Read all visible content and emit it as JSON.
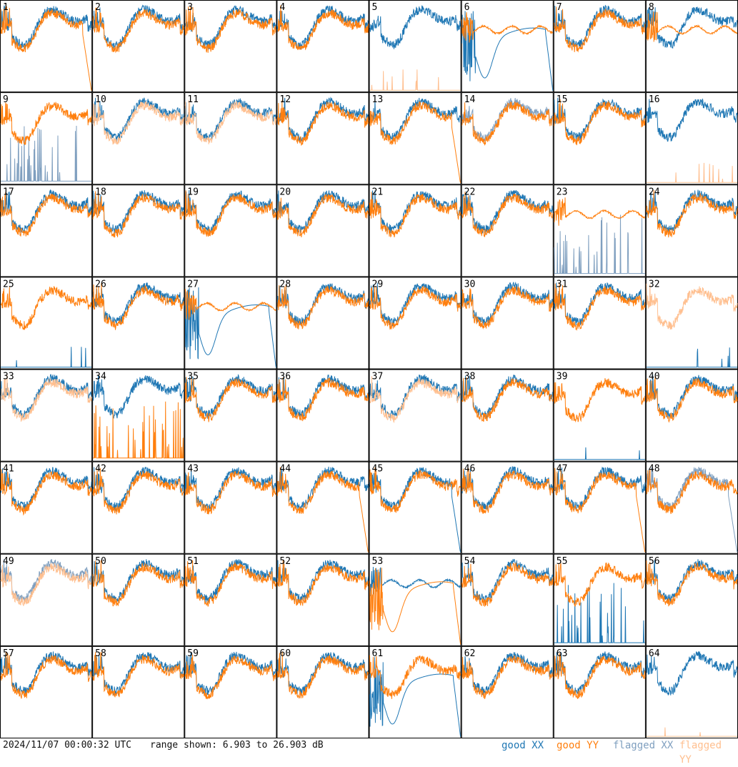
{
  "footer": {
    "timestamp": "2024/11/07 00:00:32 UTC",
    "range": "range shown: 6.903 to 26.903 dB",
    "legend": {
      "good_xx": "good XX",
      "good_yy": "good YY",
      "flagged_xx": "flagged XX",
      "flagged_yy": "flagged YY"
    }
  },
  "colors": {
    "good_xx": "#1f77b4",
    "good_yy": "#ff7f0e",
    "flagged_xx": "#7f9fbf",
    "flagged_yy": "#ffbf8f"
  },
  "chart_data": {
    "type": "line",
    "grid_rows": 8,
    "grid_cols": 8,
    "ylim": [
      6.903,
      26.903
    ],
    "yunit": "dB",
    "panels": [
      {
        "id": "1",
        "xx": {
          "status": "good",
          "shape": "normal"
        },
        "yy": {
          "status": "good",
          "shape": "drop_end"
        }
      },
      {
        "id": "2",
        "xx": {
          "status": "good",
          "shape": "normal"
        },
        "yy": {
          "status": "good",
          "shape": "normal"
        }
      },
      {
        "id": "3",
        "xx": {
          "status": "good",
          "shape": "normal"
        },
        "yy": {
          "status": "good",
          "shape": "normal"
        }
      },
      {
        "id": "4",
        "xx": {
          "status": "good",
          "shape": "normal"
        },
        "yy": {
          "status": "good",
          "shape": "normal"
        }
      },
      {
        "id": "5",
        "xx": {
          "status": "good",
          "shape": "normal"
        },
        "yy": {
          "status": "flagged",
          "shape": "flat_low"
        }
      },
      {
        "id": "6",
        "xx": {
          "status": "good",
          "shape": "dip"
        },
        "yy": {
          "status": "good",
          "shape": "flat"
        }
      },
      {
        "id": "7",
        "xx": {
          "status": "good",
          "shape": "normal"
        },
        "yy": {
          "status": "good",
          "shape": "normal"
        }
      },
      {
        "id": "8",
        "xx": {
          "status": "good",
          "shape": "normal"
        },
        "yy": {
          "status": "good",
          "shape": "flat"
        }
      },
      {
        "id": "9",
        "xx": {
          "status": "flagged",
          "shape": "spikes_low"
        },
        "yy": {
          "status": "good",
          "shape": "normal"
        }
      },
      {
        "id": "10",
        "xx": {
          "status": "good",
          "shape": "normal"
        },
        "yy": {
          "status": "flagged",
          "shape": "normal"
        }
      },
      {
        "id": "11",
        "xx": {
          "status": "good",
          "shape": "normal"
        },
        "yy": {
          "status": "flagged",
          "shape": "normal"
        }
      },
      {
        "id": "12",
        "xx": {
          "status": "good",
          "shape": "normal"
        },
        "yy": {
          "status": "good",
          "shape": "normal"
        }
      },
      {
        "id": "13",
        "xx": {
          "status": "good",
          "shape": "normal"
        },
        "yy": {
          "status": "good",
          "shape": "drop_end"
        }
      },
      {
        "id": "14",
        "xx": {
          "status": "flagged",
          "shape": "normal"
        },
        "yy": {
          "status": "good",
          "shape": "normal"
        }
      },
      {
        "id": "15",
        "xx": {
          "status": "good",
          "shape": "normal"
        },
        "yy": {
          "status": "good",
          "shape": "normal"
        }
      },
      {
        "id": "16",
        "xx": {
          "status": "good",
          "shape": "normal"
        },
        "yy": {
          "status": "flagged",
          "shape": "flat_low"
        }
      },
      {
        "id": "17",
        "xx": {
          "status": "good",
          "shape": "normal"
        },
        "yy": {
          "status": "good",
          "shape": "normal"
        }
      },
      {
        "id": "18",
        "xx": {
          "status": "good",
          "shape": "normal"
        },
        "yy": {
          "status": "good",
          "shape": "normal"
        }
      },
      {
        "id": "19",
        "xx": {
          "status": "good",
          "shape": "normal"
        },
        "yy": {
          "status": "good",
          "shape": "normal"
        }
      },
      {
        "id": "20",
        "xx": {
          "status": "good",
          "shape": "normal"
        },
        "yy": {
          "status": "good",
          "shape": "normal"
        }
      },
      {
        "id": "21",
        "xx": {
          "status": "good",
          "shape": "normal"
        },
        "yy": {
          "status": "good",
          "shape": "normal"
        }
      },
      {
        "id": "22",
        "xx": {
          "status": "good",
          "shape": "normal"
        },
        "yy": {
          "status": "good",
          "shape": "normal"
        }
      },
      {
        "id": "23",
        "xx": {
          "status": "flagged",
          "shape": "spikes_low"
        },
        "yy": {
          "status": "good",
          "shape": "flat"
        }
      },
      {
        "id": "24",
        "xx": {
          "status": "good",
          "shape": "normal"
        },
        "yy": {
          "status": "good",
          "shape": "normal"
        }
      },
      {
        "id": "25",
        "xx": {
          "status": "good",
          "shape": "flat_low"
        },
        "yy": {
          "status": "good",
          "shape": "normal"
        }
      },
      {
        "id": "26",
        "xx": {
          "status": "good",
          "shape": "normal"
        },
        "yy": {
          "status": "good",
          "shape": "normal"
        }
      },
      {
        "id": "27",
        "xx": {
          "status": "good",
          "shape": "dip"
        },
        "yy": {
          "status": "good",
          "shape": "flat"
        }
      },
      {
        "id": "28",
        "xx": {
          "status": "good",
          "shape": "normal"
        },
        "yy": {
          "status": "good",
          "shape": "normal"
        }
      },
      {
        "id": "29",
        "xx": {
          "status": "good",
          "shape": "normal"
        },
        "yy": {
          "status": "good",
          "shape": "normal"
        }
      },
      {
        "id": "30",
        "xx": {
          "status": "good",
          "shape": "normal"
        },
        "yy": {
          "status": "good",
          "shape": "normal"
        }
      },
      {
        "id": "31",
        "xx": {
          "status": "good",
          "shape": "normal"
        },
        "yy": {
          "status": "good",
          "shape": "normal"
        }
      },
      {
        "id": "32",
        "xx": {
          "status": "good",
          "shape": "flat_low"
        },
        "yy": {
          "status": "flagged",
          "shape": "normal"
        }
      },
      {
        "id": "33",
        "xx": {
          "status": "good",
          "shape": "normal"
        },
        "yy": {
          "status": "flagged",
          "shape": "normal"
        }
      },
      {
        "id": "34",
        "xx": {
          "status": "good",
          "shape": "normal"
        },
        "yy": {
          "status": "good",
          "shape": "spikes_low"
        }
      },
      {
        "id": "35",
        "xx": {
          "status": "good",
          "shape": "normal"
        },
        "yy": {
          "status": "good",
          "shape": "normal"
        }
      },
      {
        "id": "36",
        "xx": {
          "status": "good",
          "shape": "normal"
        },
        "yy": {
          "status": "good",
          "shape": "normal"
        }
      },
      {
        "id": "37",
        "xx": {
          "status": "good",
          "shape": "normal"
        },
        "yy": {
          "status": "flagged",
          "shape": "normal"
        }
      },
      {
        "id": "38",
        "xx": {
          "status": "good",
          "shape": "normal"
        },
        "yy": {
          "status": "good",
          "shape": "normal"
        }
      },
      {
        "id": "39",
        "xx": {
          "status": "good",
          "shape": "flat_low"
        },
        "yy": {
          "status": "good",
          "shape": "normal"
        }
      },
      {
        "id": "40",
        "xx": {
          "status": "good",
          "shape": "normal"
        },
        "yy": {
          "status": "good",
          "shape": "normal"
        }
      },
      {
        "id": "41",
        "xx": {
          "status": "good",
          "shape": "normal"
        },
        "yy": {
          "status": "good",
          "shape": "normal"
        }
      },
      {
        "id": "42",
        "xx": {
          "status": "good",
          "shape": "normal"
        },
        "yy": {
          "status": "good",
          "shape": "normal"
        }
      },
      {
        "id": "43",
        "xx": {
          "status": "good",
          "shape": "normal"
        },
        "yy": {
          "status": "good",
          "shape": "normal"
        }
      },
      {
        "id": "44",
        "xx": {
          "status": "good",
          "shape": "normal"
        },
        "yy": {
          "status": "good",
          "shape": "drop_end"
        }
      },
      {
        "id": "45",
        "xx": {
          "status": "good",
          "shape": "drop_end"
        },
        "yy": {
          "status": "good",
          "shape": "normal"
        }
      },
      {
        "id": "46",
        "xx": {
          "status": "good",
          "shape": "normal"
        },
        "yy": {
          "status": "good",
          "shape": "normal"
        }
      },
      {
        "id": "47",
        "xx": {
          "status": "good",
          "shape": "normal"
        },
        "yy": {
          "status": "good",
          "shape": "drop_end"
        }
      },
      {
        "id": "48",
        "xx": {
          "status": "flagged",
          "shape": "drop_end"
        },
        "yy": {
          "status": "good",
          "shape": "normal"
        }
      },
      {
        "id": "49",
        "xx": {
          "status": "flagged",
          "shape": "normal"
        },
        "yy": {
          "status": "flagged",
          "shape": "normal"
        }
      },
      {
        "id": "50",
        "xx": {
          "status": "good",
          "shape": "normal"
        },
        "yy": {
          "status": "good",
          "shape": "normal"
        }
      },
      {
        "id": "51",
        "xx": {
          "status": "good",
          "shape": "normal"
        },
        "yy": {
          "status": "good",
          "shape": "normal"
        }
      },
      {
        "id": "52",
        "xx": {
          "status": "good",
          "shape": "normal"
        },
        "yy": {
          "status": "good",
          "shape": "normal"
        }
      },
      {
        "id": "53",
        "xx": {
          "status": "good",
          "shape": "flat"
        },
        "yy": {
          "status": "good",
          "shape": "dip"
        }
      },
      {
        "id": "54",
        "xx": {
          "status": "good",
          "shape": "normal"
        },
        "yy": {
          "status": "good",
          "shape": "normal"
        }
      },
      {
        "id": "55",
        "xx": {
          "status": "good",
          "shape": "spikes_low"
        },
        "yy": {
          "status": "good",
          "shape": "normal"
        }
      },
      {
        "id": "56",
        "xx": {
          "status": "good",
          "shape": "normal"
        },
        "yy": {
          "status": "good",
          "shape": "normal"
        }
      },
      {
        "id": "57",
        "xx": {
          "status": "good",
          "shape": "normal"
        },
        "yy": {
          "status": "good",
          "shape": "normal"
        }
      },
      {
        "id": "58",
        "xx": {
          "status": "good",
          "shape": "normal"
        },
        "yy": {
          "status": "good",
          "shape": "normal"
        }
      },
      {
        "id": "59",
        "xx": {
          "status": "good",
          "shape": "normal"
        },
        "yy": {
          "status": "good",
          "shape": "normal"
        }
      },
      {
        "id": "60",
        "xx": {
          "status": "good",
          "shape": "normal"
        },
        "yy": {
          "status": "good",
          "shape": "normal"
        }
      },
      {
        "id": "61",
        "xx": {
          "status": "good",
          "shape": "dip"
        },
        "yy": {
          "status": "good",
          "shape": "normal"
        }
      },
      {
        "id": "62",
        "xx": {
          "status": "good",
          "shape": "normal"
        },
        "yy": {
          "status": "good",
          "shape": "normal"
        }
      },
      {
        "id": "63",
        "xx": {
          "status": "good",
          "shape": "normal"
        },
        "yy": {
          "status": "good",
          "shape": "normal"
        }
      },
      {
        "id": "64",
        "xx": {
          "status": "good",
          "shape": "normal"
        },
        "yy": {
          "status": "flagged",
          "shape": "flat_low"
        }
      }
    ]
  }
}
